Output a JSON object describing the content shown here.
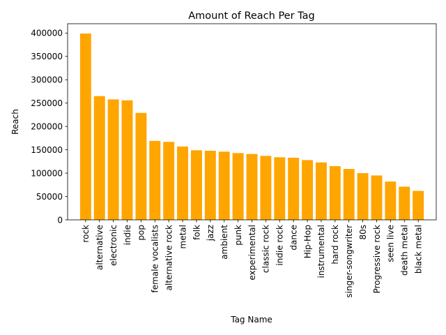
{
  "chart_data": {
    "type": "bar",
    "title": "Amount of Reach Per Tag",
    "xlabel": "Tag Name",
    "ylabel": "Reach",
    "ylim": [
      0,
      420000
    ],
    "yticks": [
      0,
      50000,
      100000,
      150000,
      200000,
      250000,
      300000,
      350000,
      400000
    ],
    "ytick_labels": [
      "0",
      "50000",
      "100000",
      "150000",
      "200000",
      "250000",
      "300000",
      "350000",
      "400000"
    ],
    "grid": false,
    "bar_color": "#ffa500",
    "categories": [
      "rock",
      "alternative",
      "electronic",
      "indie",
      "pop",
      "female vocalists",
      "alternative rock",
      "metal",
      "folk",
      "jazz",
      "ambient",
      "punk",
      "experimental",
      "classic rock",
      "indie rock",
      "dance",
      "Hip-Hop",
      "instrumental",
      "hard rock",
      "singer-songwriter",
      "80s",
      "Progressive rock",
      "seen live",
      "death metal",
      "black metal"
    ],
    "values": [
      399000,
      265000,
      258000,
      256000,
      229000,
      169000,
      167000,
      157000,
      149000,
      148000,
      146000,
      143000,
      141000,
      137000,
      134000,
      133000,
      128000,
      123000,
      115000,
      109000,
      100000,
      95000,
      82000,
      71000,
      62000
    ]
  }
}
